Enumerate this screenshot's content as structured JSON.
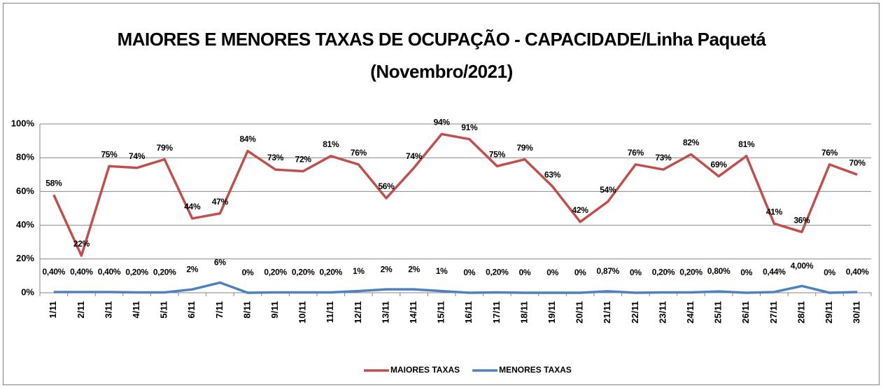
{
  "chart_data": {
    "type": "line",
    "title": "MAIORES E MENORES TAXAS DE OCUPAÇÃO - CAPACIDADE/Linha Paquetá",
    "subtitle": "(Novembro/2021)",
    "categories": [
      "1/11",
      "2/11",
      "3/11",
      "4/11",
      "5/11",
      "6/11",
      "7/11",
      "8/11",
      "9/11",
      "10/11",
      "11/11",
      "12/11",
      "13/11",
      "14/11",
      "15/11",
      "16/11",
      "17/11",
      "18/11",
      "19/11",
      "20/11",
      "21/11",
      "22/11",
      "23/11",
      "24/11",
      "25/11",
      "26/11",
      "27/11",
      "28/11",
      "29/11",
      "30/11"
    ],
    "series": [
      {
        "name": "MAIORES TAXAS",
        "color": "#c0504d",
        "values": [
          58,
          22,
          75,
          74,
          79,
          44,
          47,
          84,
          73,
          72,
          81,
          76,
          56,
          74,
          94,
          91,
          75,
          79,
          63,
          42,
          54,
          76,
          73,
          82,
          69,
          81,
          41,
          36,
          76,
          70
        ],
        "value_labels": [
          "58%",
          "22%",
          "75%",
          "74%",
          "79%",
          "44%",
          "47%",
          "84%",
          "73%",
          "72%",
          "81%",
          "76%",
          "56%",
          "74%",
          "94%",
          "91%",
          "75%",
          "79%",
          "63%",
          "42%",
          "54%",
          "76%",
          "73%",
          "82%",
          "69%",
          "81%",
          "41%",
          "36%",
          "76%",
          "70%"
        ]
      },
      {
        "name": "MENORES TAXAS",
        "color": "#4f81bd",
        "values": [
          0.4,
          0.4,
          0.4,
          0.2,
          0.2,
          2,
          6,
          0,
          0.2,
          0.2,
          0.2,
          1,
          2,
          2,
          1,
          0,
          0.2,
          0,
          0,
          0,
          0.87,
          0,
          0.2,
          0.2,
          0.8,
          0,
          0.44,
          4,
          0,
          0.4
        ],
        "value_labels": [
          "0,40%",
          "0,40%",
          "0,40%",
          "0,20%",
          "0,20%",
          "2%",
          "6%",
          "0%",
          "0,20%",
          "0,20%",
          "0,20%",
          "1%",
          "2%",
          "2%",
          "1%",
          "0%",
          "0,20%",
          "0%",
          "0%",
          "0%",
          "0,87%",
          "0%",
          "0,20%",
          "0,20%",
          "0,80%",
          "0%",
          "0,44%",
          "4,00%",
          "0%",
          "0,40%"
        ]
      }
    ],
    "ylim": [
      0,
      100
    ],
    "yticks": [
      {
        "value": 0,
        "label": "0%"
      },
      {
        "value": 20,
        "label": "20%"
      },
      {
        "value": 40,
        "label": "40%"
      },
      {
        "value": 60,
        "label": "60%"
      },
      {
        "value": 80,
        "label": "80%"
      },
      {
        "value": 100,
        "label": "100%"
      }
    ],
    "grid": true,
    "legend": "bottom"
  }
}
